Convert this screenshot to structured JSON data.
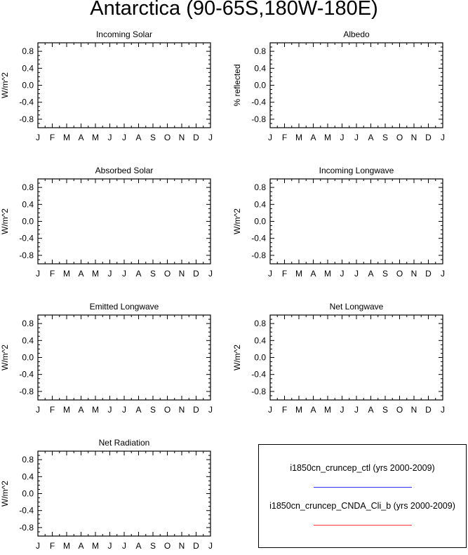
{
  "title": "Antarctica (90-65S,180W-180E)",
  "colors": {
    "frame": "#000000",
    "series_ctl": "#3333ff",
    "series_cnda": "#ff3333"
  },
  "chart_data": [
    {
      "type": "line",
      "title": "Incoming Solar",
      "ylabel": "W/m^2",
      "xticks": [
        "J",
        "F",
        "M",
        "A",
        "M",
        "J",
        "J",
        "A",
        "S",
        "O",
        "N",
        "D",
        "J"
      ],
      "yticks": [
        "0.8",
        "0.4",
        "0.0",
        "-0.4",
        "-0.8"
      ],
      "ylim": [
        -1,
        1
      ],
      "series": []
    },
    {
      "type": "line",
      "title": "Albedo",
      "ylabel": "% reflected",
      "xticks": [
        "J",
        "F",
        "M",
        "A",
        "M",
        "J",
        "J",
        "A",
        "S",
        "O",
        "N",
        "D",
        "J"
      ],
      "yticks": [
        "0.8",
        "0.4",
        "0.0",
        "-0.4",
        "-0.8"
      ],
      "ylim": [
        -1,
        1
      ],
      "series": []
    },
    {
      "type": "line",
      "title": "Absorbed Solar",
      "ylabel": "W/m^2",
      "xticks": [
        "J",
        "F",
        "M",
        "A",
        "M",
        "J",
        "J",
        "A",
        "S",
        "O",
        "N",
        "D",
        "J"
      ],
      "yticks": [
        "0.8",
        "0.4",
        "0.0",
        "-0.4",
        "-0.8"
      ],
      "ylim": [
        -1,
        1
      ],
      "series": []
    },
    {
      "type": "line",
      "title": "Incoming Longwave",
      "ylabel": "W/m^2",
      "xticks": [
        "J",
        "F",
        "M",
        "A",
        "M",
        "J",
        "J",
        "A",
        "S",
        "O",
        "N",
        "D",
        "J"
      ],
      "yticks": [
        "0.8",
        "0.4",
        "0.0",
        "-0.4",
        "-0.8"
      ],
      "ylim": [
        -1,
        1
      ],
      "series": []
    },
    {
      "type": "line",
      "title": "Emitted Longwave",
      "ylabel": "W/m^2",
      "xticks": [
        "J",
        "F",
        "M",
        "A",
        "M",
        "J",
        "J",
        "A",
        "S",
        "O",
        "N",
        "D",
        "J"
      ],
      "yticks": [
        "0.8",
        "0.4",
        "0.0",
        "-0.4",
        "-0.8"
      ],
      "ylim": [
        -1,
        1
      ],
      "series": []
    },
    {
      "type": "line",
      "title": "Net Longwave",
      "ylabel": "W/m^2",
      "xticks": [
        "J",
        "F",
        "M",
        "A",
        "M",
        "J",
        "J",
        "A",
        "S",
        "O",
        "N",
        "D",
        "J"
      ],
      "yticks": [
        "0.8",
        "0.4",
        "0.0",
        "-0.4",
        "-0.8"
      ],
      "ylim": [
        -1,
        1
      ],
      "series": []
    },
    {
      "type": "line",
      "title": "Net Radiation",
      "ylabel": "W/m^2",
      "xticks": [
        "J",
        "F",
        "M",
        "A",
        "M",
        "J",
        "J",
        "A",
        "S",
        "O",
        "N",
        "D",
        "J"
      ],
      "yticks": [
        "0.8",
        "0.4",
        "0.0",
        "-0.4",
        "-0.8"
      ],
      "ylim": [
        -1,
        1
      ],
      "series": []
    }
  ],
  "legend": {
    "entries": [
      {
        "label": "i1850cn_cruncep_ctl (yrs 2000-2009)",
        "color": "#3333ff"
      },
      {
        "label": "i1850cn_cruncep_CNDA_Cli_b (yrs 2000-2009)",
        "color": "#ff3333"
      }
    ]
  }
}
